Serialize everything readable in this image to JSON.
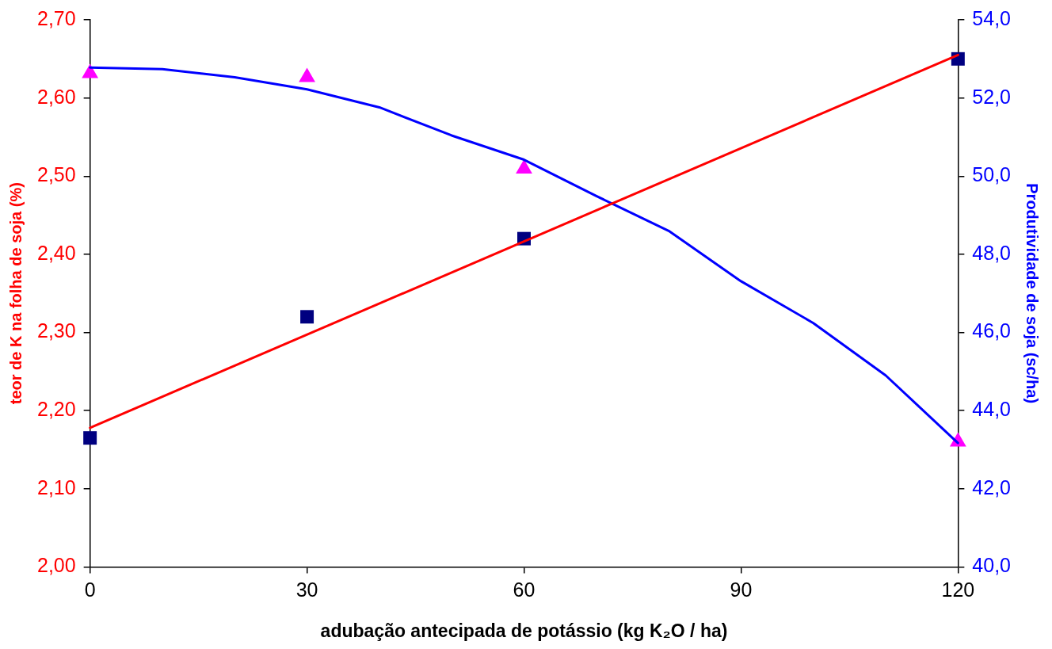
{
  "chart_data": {
    "type": "scatter",
    "xlabel": "adubação antecipada de potássio (kg K₂O / ha)",
    "ylabel": "teor de K na folha de soja (%)",
    "y2label": "Produtividade de soja (sc/ha)",
    "xlim": [
      0,
      120
    ],
    "xticks": [
      0,
      30,
      60,
      90,
      120
    ],
    "ylim": [
      2.0,
      2.7
    ],
    "yticks": [
      {
        "value": 2.0,
        "label": "2,00"
      },
      {
        "value": 2.1,
        "label": "2,10"
      },
      {
        "value": 2.2,
        "label": "2,20"
      },
      {
        "value": 2.3,
        "label": "2,30"
      },
      {
        "value": 2.4,
        "label": "2,40"
      },
      {
        "value": 2.5,
        "label": "2,50"
      },
      {
        "value": 2.6,
        "label": "2,60"
      },
      {
        "value": 2.7,
        "label": "2,70"
      }
    ],
    "y2lim": [
      40,
      54
    ],
    "y2ticks": [
      {
        "value": 40,
        "label": "40,0"
      },
      {
        "value": 42,
        "label": "42,0"
      },
      {
        "value": 44,
        "label": "44,0"
      },
      {
        "value": 46,
        "label": "46,0"
      },
      {
        "value": 48,
        "label": "48,0"
      },
      {
        "value": 50,
        "label": "50,0"
      },
      {
        "value": 52,
        "label": "52,0"
      },
      {
        "value": 54,
        "label": "54,0"
      }
    ],
    "grid": false,
    "legend": false,
    "series": [
      {
        "type": "scatter",
        "marker": "square",
        "color": "#000080",
        "x": [
          0,
          30,
          60,
          120
        ],
        "values": [
          2.165,
          2.32,
          2.42,
          2.65
        ]
      },
      {
        "type": "line",
        "marker": "none",
        "color": "#ff0000",
        "x": [
          0,
          120
        ],
        "values": [
          2.178,
          2.655
        ]
      },
      {
        "type": "scatter",
        "marker": "triangle",
        "color": "#ff00ff",
        "axis": "y2",
        "x": [
          0,
          30,
          60,
          120
        ],
        "values": [
          52.63,
          52.53,
          50.19,
          43.2
        ]
      },
      {
        "type": "line",
        "marker": "none",
        "color": "#0000ff",
        "axis": "y2",
        "x": [
          0,
          10,
          20,
          30,
          40,
          50,
          60,
          70,
          80,
          90,
          100,
          110,
          120
        ],
        "values": [
          52.78,
          52.74,
          52.53,
          52.22,
          51.76,
          51.04,
          50.42,
          49.49,
          48.6,
          47.31,
          46.24,
          44.9,
          43.17
        ]
      }
    ]
  }
}
